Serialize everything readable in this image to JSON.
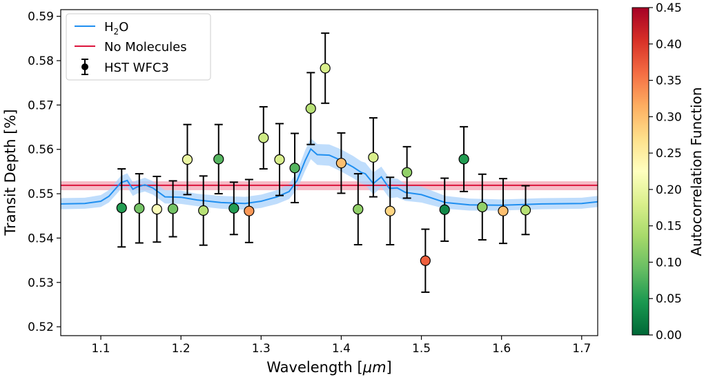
{
  "chart_data": {
    "type": "scatter",
    "xlabel": "Wavelength [μm]",
    "xlabel_main": "Wavelength [",
    "xlabel_unit": "μm",
    "xlabel_close": "]",
    "ylabel": "Transit Depth [%]",
    "xlim": [
      1.05,
      1.72
    ],
    "ylim": [
      0.518,
      0.5915
    ],
    "xticks": [
      1.1,
      1.2,
      1.3,
      1.4,
      1.5,
      1.6,
      1.7
    ],
    "xtick_labels": [
      "1.1",
      "1.2",
      "1.3",
      "1.4",
      "1.5",
      "1.6",
      "1.7"
    ],
    "yticks": [
      0.52,
      0.53,
      0.54,
      0.55,
      0.56,
      0.57,
      0.58,
      0.59
    ],
    "ytick_labels": [
      "0.52",
      "0.53",
      "0.54",
      "0.55",
      "0.56",
      "0.57",
      "0.58",
      "0.59"
    ],
    "legend": {
      "position": "top-left",
      "entries": [
        {
          "label_main": "H",
          "label_sub": "2",
          "label_tail": "O",
          "label": "H2O",
          "kind": "line",
          "color": "#1f8ff0"
        },
        {
          "label_main": "No Molecules",
          "label_sub": "",
          "label_tail": "",
          "label": "No Molecules",
          "kind": "line",
          "color": "#dc143c"
        },
        {
          "label_main": "HST WFC3",
          "label_sub": "",
          "label_tail": "",
          "label": "HST WFC3",
          "kind": "errorbar",
          "color": "#000000"
        }
      ]
    },
    "flat_model": {
      "name": "No Molecules",
      "value": 0.5519,
      "band": [
        0.5508,
        0.5528
      ],
      "color": "#dc143c",
      "band_color": "#f3a3b3"
    },
    "h2o_model": {
      "name": "H2O",
      "color": "#1f8ff0",
      "band_color": "#aad2fb",
      "x": [
        1.05,
        1.08,
        1.1,
        1.11,
        1.125,
        1.133,
        1.14,
        1.145,
        1.155,
        1.165,
        1.18,
        1.2,
        1.22,
        1.25,
        1.28,
        1.3,
        1.32,
        1.335,
        1.345,
        1.355,
        1.362,
        1.37,
        1.385,
        1.4,
        1.415,
        1.425,
        1.43,
        1.44,
        1.45,
        1.46,
        1.47,
        1.48,
        1.5,
        1.53,
        1.56,
        1.6,
        1.65,
        1.7,
        1.72
      ],
      "mid": [
        0.5477,
        0.5478,
        0.5483,
        0.5494,
        0.5525,
        0.553,
        0.551,
        0.5515,
        0.552,
        0.5513,
        0.5493,
        0.5492,
        0.5486,
        0.548,
        0.5478,
        0.5483,
        0.5493,
        0.5505,
        0.553,
        0.5575,
        0.5601,
        0.5588,
        0.5587,
        0.5575,
        0.556,
        0.5548,
        0.5545,
        0.5523,
        0.5538,
        0.5512,
        0.5513,
        0.5503,
        0.5498,
        0.548,
        0.5475,
        0.5474,
        0.5477,
        0.5478,
        0.5482
      ],
      "lower": [
        0.5465,
        0.5466,
        0.547,
        0.548,
        0.551,
        0.5515,
        0.5495,
        0.55,
        0.5505,
        0.5498,
        0.5478,
        0.5477,
        0.5472,
        0.5466,
        0.5464,
        0.5468,
        0.5477,
        0.5488,
        0.551,
        0.5552,
        0.5578,
        0.5565,
        0.5563,
        0.555,
        0.5535,
        0.5523,
        0.552,
        0.5498,
        0.5515,
        0.549,
        0.5492,
        0.5484,
        0.548,
        0.5466,
        0.5462,
        0.5462,
        0.5465,
        0.5466,
        0.547
      ],
      "upper": [
        0.549,
        0.5491,
        0.5497,
        0.5508,
        0.554,
        0.5546,
        0.5526,
        0.553,
        0.5536,
        0.5528,
        0.5508,
        0.5507,
        0.55,
        0.5495,
        0.5493,
        0.5498,
        0.5508,
        0.5522,
        0.555,
        0.5598,
        0.5625,
        0.5612,
        0.5611,
        0.56,
        0.5585,
        0.5573,
        0.557,
        0.5548,
        0.5561,
        0.5535,
        0.5534,
        0.5522,
        0.5516,
        0.5495,
        0.5489,
        0.5487,
        0.549,
        0.5491,
        0.5495
      ]
    },
    "series": [
      {
        "name": "HST WFC3",
        "x": [
          1.126,
          1.148,
          1.17,
          1.19,
          1.208,
          1.228,
          1.247,
          1.266,
          1.285,
          1.303,
          1.323,
          1.342,
          1.362,
          1.38,
          1.4,
          1.421,
          1.44,
          1.461,
          1.482,
          1.505,
          1.529,
          1.553,
          1.576,
          1.602,
          1.63
        ],
        "y": [
          0.5468,
          0.5467,
          0.5465,
          0.5466,
          0.5577,
          0.5462,
          0.5578,
          0.5467,
          0.5461,
          0.5626,
          0.5577,
          0.5558,
          0.5692,
          0.5783,
          0.5569,
          0.5465,
          0.5582,
          0.5461,
          0.5548,
          0.5349,
          0.5464,
          0.5578,
          0.547,
          0.5461,
          0.5463
        ],
        "err": [
          0.0088,
          0.0078,
          0.0074,
          0.0063,
          0.0079,
          0.0078,
          0.0078,
          0.0059,
          0.0071,
          0.007,
          0.0081,
          0.0078,
          0.0081,
          0.0079,
          0.0068,
          0.008,
          0.0089,
          0.0076,
          0.0058,
          0.0071,
          0.0071,
          0.0073,
          0.0074,
          0.0073,
          0.0055
        ],
        "acf": [
          0.05,
          0.1,
          0.22,
          0.1,
          0.2,
          0.15,
          0.08,
          0.05,
          0.33,
          0.17,
          0.18,
          0.08,
          0.15,
          0.18,
          0.3,
          0.12,
          0.18,
          0.28,
          0.12,
          0.37,
          0.03,
          0.05,
          0.12,
          0.3,
          0.15
        ]
      }
    ],
    "colorbar": {
      "label": "Autocorrelation Function",
      "range": [
        0.0,
        0.45
      ],
      "ticks": [
        0.0,
        0.05,
        0.1,
        0.15,
        0.2,
        0.25,
        0.3,
        0.35,
        0.4,
        0.45
      ],
      "tick_labels": [
        "0.00",
        "0.05",
        "0.10",
        "0.15",
        "0.20",
        "0.25",
        "0.30",
        "0.35",
        "0.40",
        "0.45"
      ],
      "colormap": "RdYlGn_r",
      "stops": [
        "#006837",
        "#1a9850",
        "#66bd63",
        "#a6d96a",
        "#d9ef8b",
        "#ffffbf",
        "#fee08b",
        "#fdae61",
        "#f46d43",
        "#d73027",
        "#a50026"
      ]
    }
  }
}
